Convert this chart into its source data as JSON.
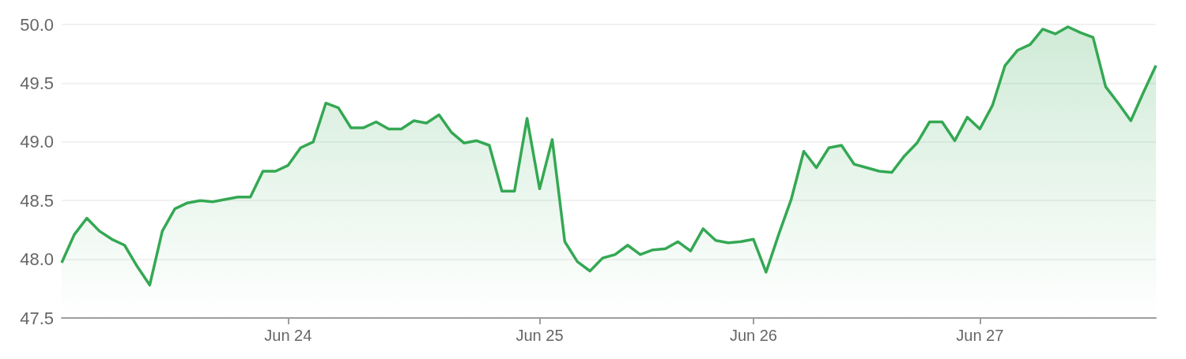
{
  "chart_data": {
    "type": "area",
    "categories": [
      null,
      null,
      null,
      null,
      null,
      null,
      null,
      null,
      null,
      null,
      null,
      null,
      null,
      null,
      null,
      null,
      null,
      null,
      "Jun 24",
      null,
      null,
      null,
      null,
      null,
      null,
      null,
      null,
      null,
      null,
      null,
      null,
      null,
      null,
      null,
      null,
      null,
      null,
      null,
      "Jun 25",
      null,
      null,
      null,
      null,
      null,
      null,
      null,
      null,
      null,
      null,
      null,
      null,
      null,
      null,
      null,
      null,
      "Jun 26",
      null,
      null,
      null,
      null,
      null,
      null,
      null,
      null,
      null,
      null,
      null,
      null,
      null,
      null,
      null,
      null,
      null,
      "Jun 27",
      null,
      null,
      null,
      null,
      null,
      null,
      null,
      null,
      null,
      null,
      null,
      null,
      null,
      null
    ],
    "series": [
      {
        "color": "#34a853",
        "values": [
          47.97,
          48.21,
          48.35,
          48.24,
          48.17,
          48.12,
          47.94,
          47.78,
          48.24,
          48.43,
          48.48,
          48.5,
          48.49,
          48.51,
          48.53,
          48.53,
          48.75,
          48.75,
          48.8,
          48.95,
          49.0,
          49.33,
          49.29,
          49.12,
          49.12,
          49.17,
          49.11,
          49.11,
          49.18,
          49.16,
          49.23,
          49.08,
          48.99,
          49.01,
          48.97,
          48.58,
          48.58,
          49.2,
          48.6,
          49.02,
          48.15,
          47.98,
          47.9,
          48.01,
          48.04,
          48.12,
          48.04,
          48.08,
          48.09,
          48.15,
          48.07,
          48.26,
          48.16,
          48.14,
          48.15,
          48.17,
          47.89,
          48.21,
          48.51,
          48.92,
          48.78,
          48.95,
          48.97,
          48.81,
          48.78,
          48.75,
          48.74,
          48.88,
          48.99,
          49.17,
          49.17,
          49.01,
          49.21,
          49.11,
          49.31,
          49.65,
          49.78,
          49.83,
          49.96,
          49.92,
          49.98,
          49.93,
          49.89,
          49.47,
          49.33,
          49.18,
          49.42,
          49.65
        ]
      }
    ],
    "ylim": [
      47.5,
      50.0
    ],
    "yticks": [
      {
        "value": 47.5,
        "label": "47.5"
      },
      {
        "value": 48,
        "label": "48.0"
      },
      {
        "value": 48.5,
        "label": "48.5"
      },
      {
        "value": 49,
        "label": "49.0"
      },
      {
        "value": 49.5,
        "label": "49.5"
      },
      {
        "value": 50,
        "label": "50.0"
      }
    ],
    "grid": "y"
  }
}
